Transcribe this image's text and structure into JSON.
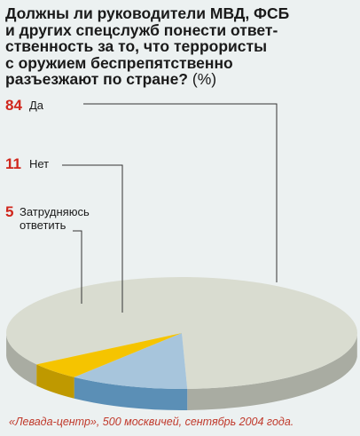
{
  "title": "Должны ли руководители МВД, ФСБ\nи других спецслужб понести ответ-\nственность за то, что террористы\nс оружием беспрепятственно\nразъезжают по стране?",
  "title_unit": "(%)",
  "source": "«Левада-центр», 500 москвичей, сентябрь 2004 года.",
  "colors": {
    "accent": "#d0261c",
    "yes": "#d9dcd0",
    "no": "#a7c5dc",
    "unsure": "#f5c400",
    "depth": "#5b8fb6"
  },
  "chart_data": {
    "type": "pie",
    "title": "Должны ли руководители МВД, ФСБ и других спецслужб понести ответственность за то, что террористы с оружием беспрепятственно разъезжают по стране?",
    "unit": "%",
    "slices": [
      {
        "label": "Да",
        "value": 84,
        "color": "#d9dcd0"
      },
      {
        "label": "Нет",
        "value": 11,
        "color": "#a7c5dc"
      },
      {
        "label": "Затрудняюсь\nответить",
        "value": 5,
        "color": "#f5c400"
      }
    ]
  }
}
